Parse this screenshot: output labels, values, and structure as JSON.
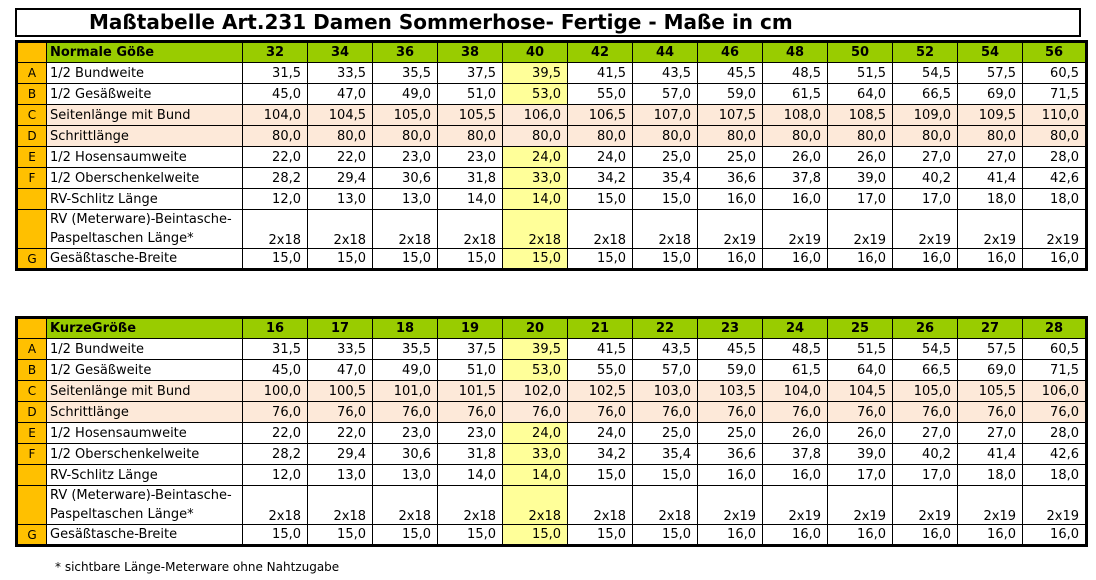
{
  "title": "Maßtabelle Art.231 Damen Sommerhose- Fertige - Maße in cm",
  "footnote": "* sichtbare Länge-Meterware ohne Nahtzugabe",
  "colors": {
    "header_green": "#99cc00",
    "letter_orange": "#ffc000",
    "highlight_yellow": "#ffff99",
    "peach_row": "#fde9d9"
  },
  "tables": [
    {
      "header_label": "Normale Göße",
      "sizes": [
        "32",
        "34",
        "36",
        "38",
        "40",
        "42",
        "44",
        "46",
        "48",
        "50",
        "52",
        "54",
        "56"
      ],
      "highlight_index": 4,
      "rows": [
        {
          "letter": "A",
          "label": "1/2 Bundweite",
          "values": [
            "31,5",
            "33,5",
            "35,5",
            "37,5",
            "39,5",
            "41,5",
            "43,5",
            "45,5",
            "48,5",
            "51,5",
            "54,5",
            "57,5",
            "60,5"
          ]
        },
        {
          "letter": "B",
          "label": "1/2 Gesäßweite",
          "values": [
            "45,0",
            "47,0",
            "49,0",
            "51,0",
            "53,0",
            "55,0",
            "57,0",
            "59,0",
            "61,5",
            "64,0",
            "66,5",
            "69,0",
            "71,5"
          ]
        },
        {
          "letter": "C",
          "label": "Seitenlänge mit Bund",
          "peach": true,
          "values": [
            "104,0",
            "104,5",
            "105,0",
            "105,5",
            "106,0",
            "106,5",
            "107,0",
            "107,5",
            "108,0",
            "108,5",
            "109,0",
            "109,5",
            "110,0"
          ]
        },
        {
          "letter": "D",
          "label": "Schrittlänge",
          "peach": true,
          "values": [
            "80,0",
            "80,0",
            "80,0",
            "80,0",
            "80,0",
            "80,0",
            "80,0",
            "80,0",
            "80,0",
            "80,0",
            "80,0",
            "80,0",
            "80,0"
          ]
        },
        {
          "letter": "E",
          "label": "1/2 Hosensaumweite",
          "values": [
            "22,0",
            "22,0",
            "23,0",
            "23,0",
            "24,0",
            "24,0",
            "25,0",
            "25,0",
            "26,0",
            "26,0",
            "27,0",
            "27,0",
            "28,0"
          ]
        },
        {
          "letter": "F",
          "label": "1/2 Oberschenkelweite",
          "values": [
            "28,2",
            "29,4",
            "30,6",
            "31,8",
            "33,0",
            "34,2",
            "35,4",
            "36,6",
            "37,8",
            "39,0",
            "40,2",
            "41,4",
            "42,6"
          ]
        },
        {
          "letter": "",
          "label": "RV-Schlitz Länge",
          "values": [
            "12,0",
            "13,0",
            "13,0",
            "14,0",
            "14,0",
            "15,0",
            "15,0",
            "16,0",
            "16,0",
            "17,0",
            "17,0",
            "18,0",
            "18,0"
          ]
        },
        {
          "letter": "",
          "label": "RV (Meterware)-Beintasche- Paspeltaschen Länge*",
          "tall": true,
          "values": [
            "2x18",
            "2x18",
            "2x18",
            "2x18",
            "2x18",
            "2x18",
            "2x18",
            "2x19",
            "2x19",
            "2x19",
            "2x19",
            "2x19",
            "2x19"
          ]
        },
        {
          "letter": "G",
          "label": "Gesäßtasche-Breite",
          "values": [
            "15,0",
            "15,0",
            "15,0",
            "15,0",
            "15,0",
            "15,0",
            "15,0",
            "16,0",
            "16,0",
            "16,0",
            "16,0",
            "16,0",
            "16,0"
          ]
        }
      ]
    },
    {
      "header_label": "KurzeGröße",
      "sizes": [
        "16",
        "17",
        "18",
        "19",
        "20",
        "21",
        "22",
        "23",
        "24",
        "25",
        "26",
        "27",
        "28"
      ],
      "highlight_index": 4,
      "rows": [
        {
          "letter": "A",
          "label": "1/2 Bundweite",
          "values": [
            "31,5",
            "33,5",
            "35,5",
            "37,5",
            "39,5",
            "41,5",
            "43,5",
            "45,5",
            "48,5",
            "51,5",
            "54,5",
            "57,5",
            "60,5"
          ]
        },
        {
          "letter": "B",
          "label": "1/2 Gesäßweite",
          "values": [
            "45,0",
            "47,0",
            "49,0",
            "51,0",
            "53,0",
            "55,0",
            "57,0",
            "59,0",
            "61,5",
            "64,0",
            "66,5",
            "69,0",
            "71,5"
          ]
        },
        {
          "letter": "C",
          "label": "Seitenlänge mit Bund",
          "peach": true,
          "values": [
            "100,0",
            "100,5",
            "101,0",
            "101,5",
            "102,0",
            "102,5",
            "103,0",
            "103,5",
            "104,0",
            "104,5",
            "105,0",
            "105,5",
            "106,0"
          ]
        },
        {
          "letter": "D",
          "label": "Schrittlänge",
          "peach": true,
          "values": [
            "76,0",
            "76,0",
            "76,0",
            "76,0",
            "76,0",
            "76,0",
            "76,0",
            "76,0",
            "76,0",
            "76,0",
            "76,0",
            "76,0",
            "76,0"
          ]
        },
        {
          "letter": "E",
          "label": "1/2 Hosensaumweite",
          "values": [
            "22,0",
            "22,0",
            "23,0",
            "23,0",
            "24,0",
            "24,0",
            "25,0",
            "25,0",
            "26,0",
            "26,0",
            "27,0",
            "27,0",
            "28,0"
          ]
        },
        {
          "letter": "F",
          "label": "1/2 Oberschenkelweite",
          "values": [
            "28,2",
            "29,4",
            "30,6",
            "31,8",
            "33,0",
            "34,2",
            "35,4",
            "36,6",
            "37,8",
            "39,0",
            "40,2",
            "41,4",
            "42,6"
          ]
        },
        {
          "letter": "",
          "label": "RV-Schlitz Länge",
          "values": [
            "12,0",
            "13,0",
            "13,0",
            "14,0",
            "14,0",
            "15,0",
            "15,0",
            "16,0",
            "16,0",
            "17,0",
            "17,0",
            "18,0",
            "18,0"
          ]
        },
        {
          "letter": "",
          "label": "RV (Meterware)-Beintasche- Paspeltaschen Länge*",
          "tall": true,
          "values": [
            "2x18",
            "2x18",
            "2x18",
            "2x18",
            "2x18",
            "2x18",
            "2x18",
            "2x19",
            "2x19",
            "2x19",
            "2x19",
            "2x19",
            "2x19"
          ]
        },
        {
          "letter": "G",
          "label": "Gesäßtasche-Breite",
          "values": [
            "15,0",
            "15,0",
            "15,0",
            "15,0",
            "15,0",
            "15,0",
            "15,0",
            "16,0",
            "16,0",
            "16,0",
            "16,0",
            "16,0",
            "16,0"
          ]
        }
      ]
    }
  ]
}
